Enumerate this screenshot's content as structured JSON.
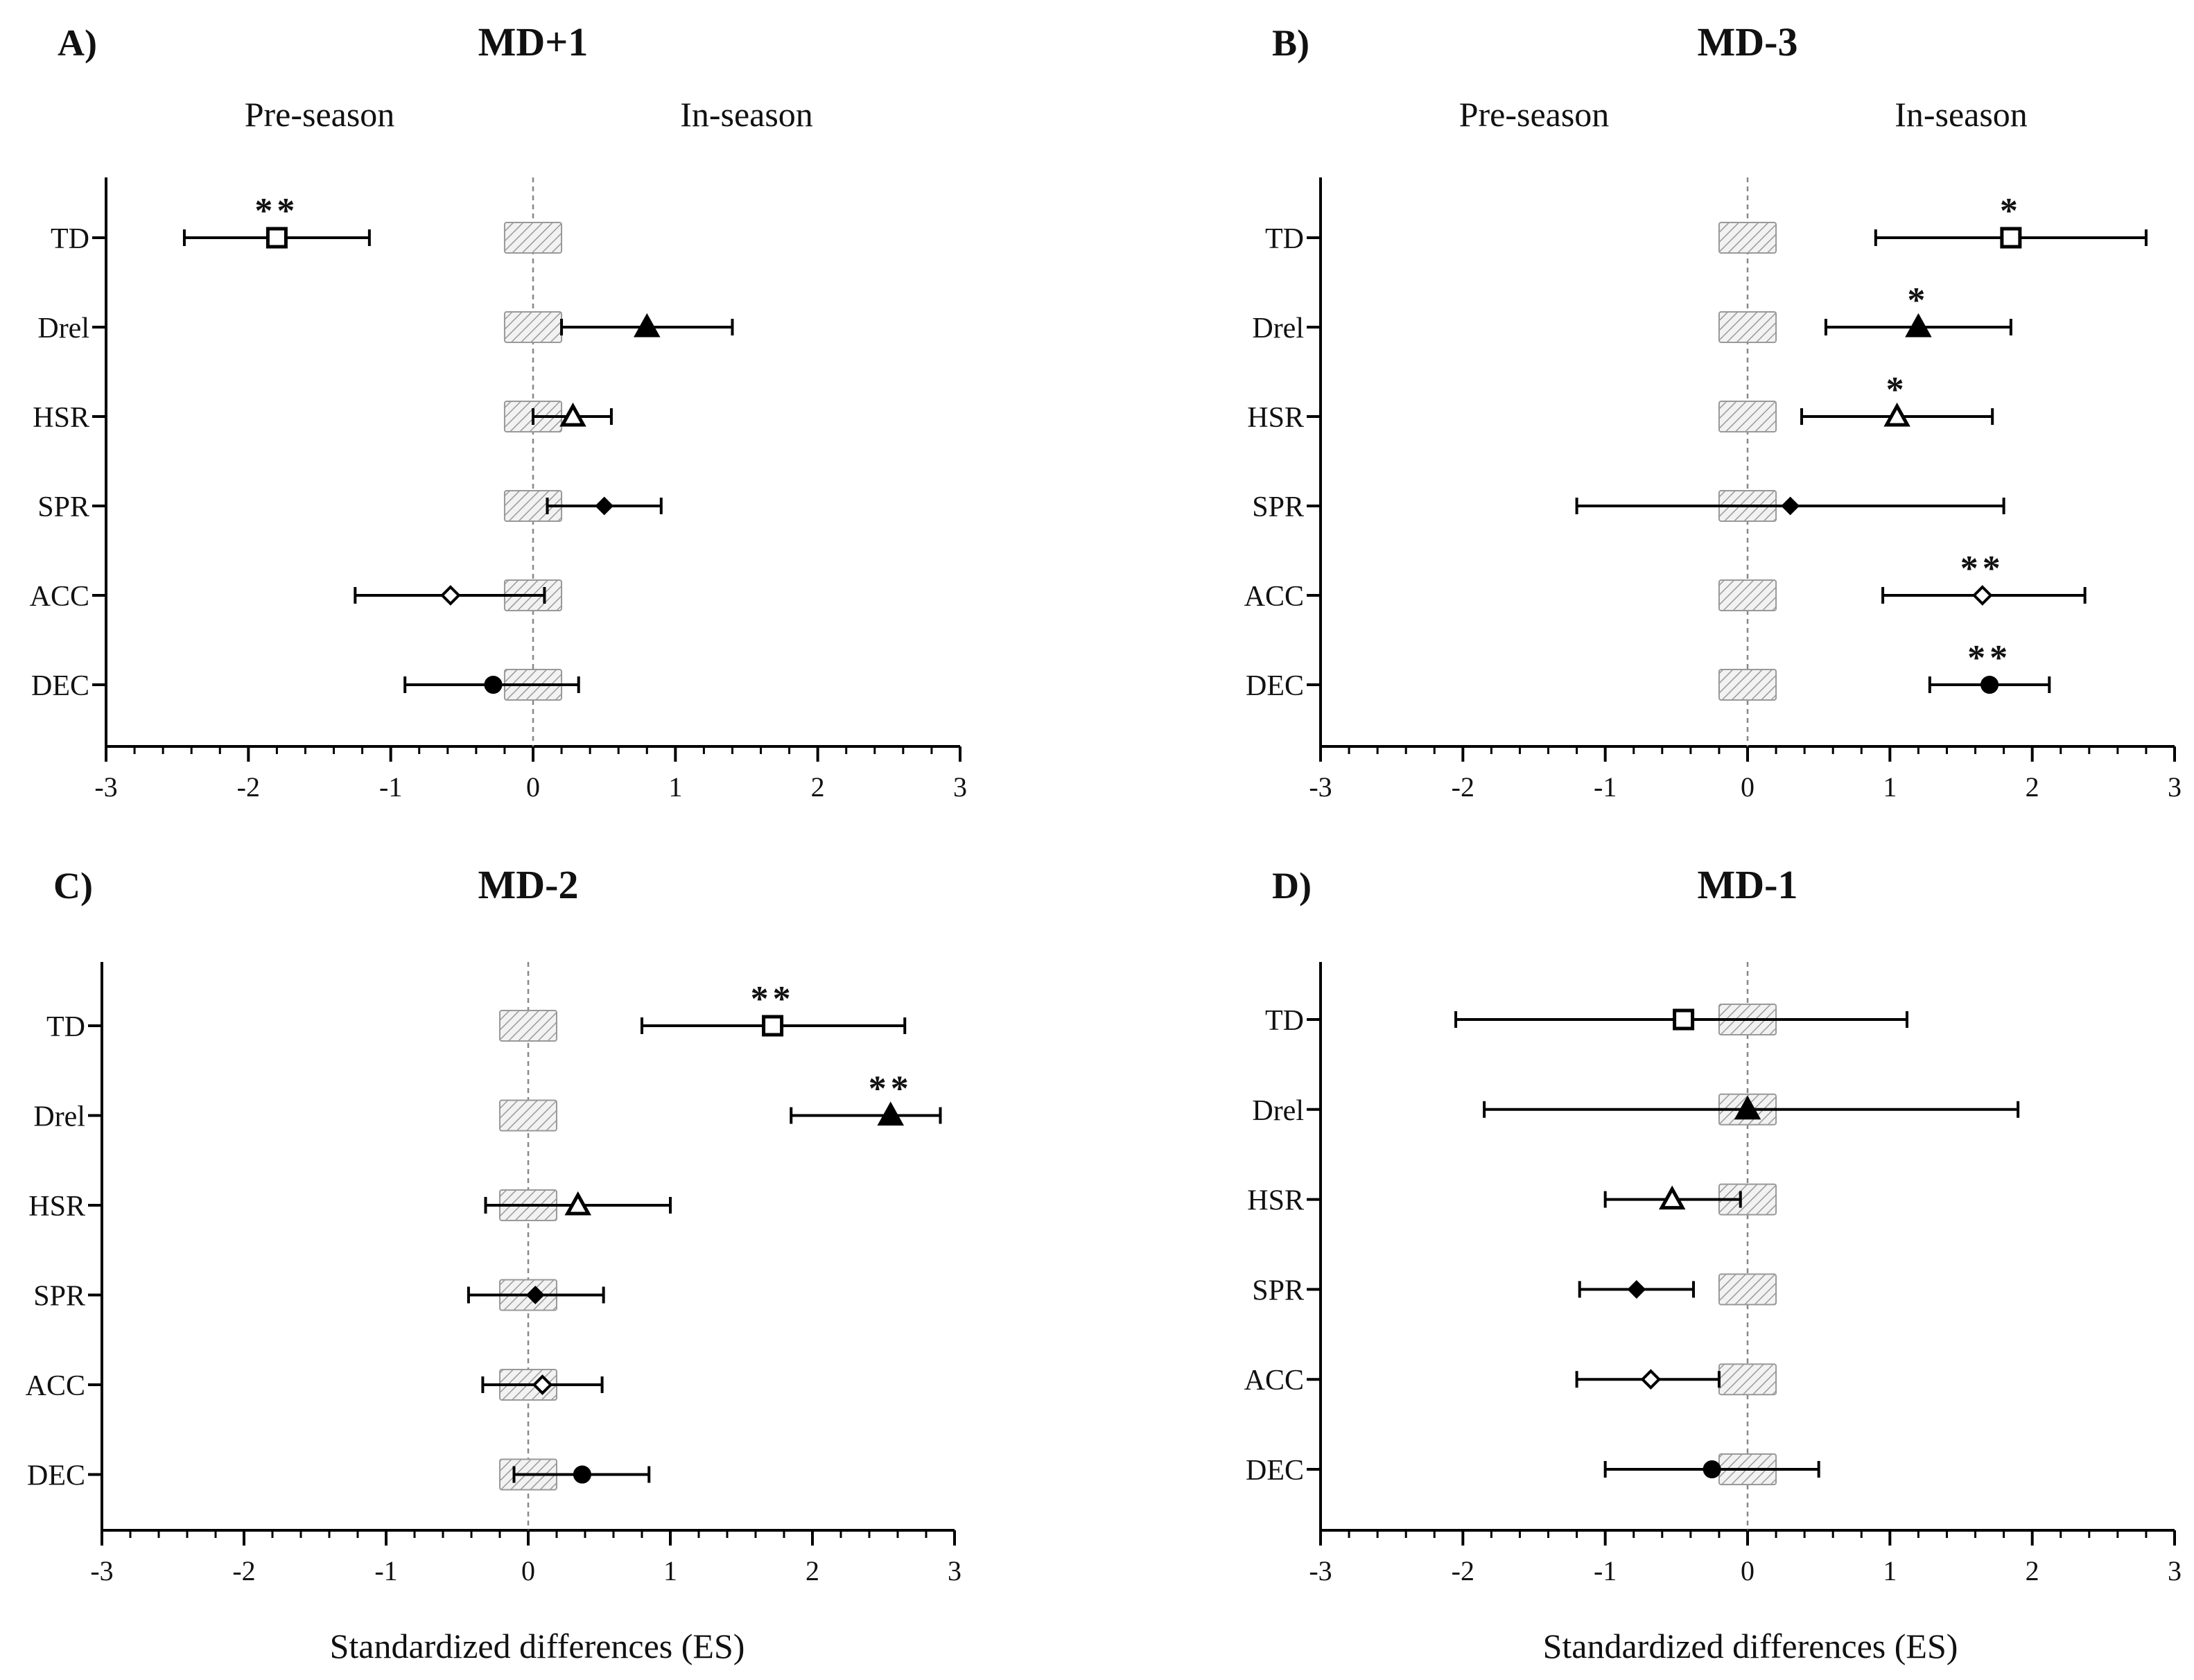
{
  "figure": {
    "x_axis_label": "Standardized  differences  (ES)"
  },
  "chart_data": [
    {
      "type": "forest",
      "panel": "A)",
      "title": "MD+1",
      "header_left": "Pre-season",
      "header_right": "In-season",
      "xlim": [
        -3,
        3
      ],
      "xticks": [
        -3,
        -2,
        -1,
        0,
        1,
        2,
        3
      ],
      "trivial_band": [
        -0.2,
        0.2
      ],
      "categories": [
        "TD",
        "Drel",
        "HSR",
        "SPR",
        "ACC",
        "DEC"
      ],
      "markers": [
        "square-open",
        "triangle-filled",
        "triangle-open",
        "diamond-filled",
        "diamond-open",
        "circle-filled"
      ],
      "es": [
        -1.8,
        0.8,
        0.28,
        0.5,
        -0.58,
        -0.28
      ],
      "ci_low": [
        -2.45,
        0.2,
        0.0,
        0.1,
        -1.25,
        -0.9
      ],
      "ci_high": [
        -1.15,
        1.4,
        0.55,
        0.9,
        0.08,
        0.32
      ],
      "sig": [
        "**",
        "",
        "",
        "",
        "",
        ""
      ]
    },
    {
      "type": "forest",
      "panel": "B)",
      "title": "MD-3",
      "header_left": "Pre-season",
      "header_right": "In-season",
      "xlim": [
        -3,
        3
      ],
      "xticks": [
        -3,
        -2,
        -1,
        0,
        1,
        2,
        3
      ],
      "trivial_band": [
        -0.2,
        0.2
      ],
      "categories": [
        "TD",
        "Drel",
        "HSR",
        "SPR",
        "ACC",
        "DEC"
      ],
      "markers": [
        "square-open",
        "triangle-filled",
        "triangle-open",
        "diamond-filled",
        "diamond-open",
        "circle-filled"
      ],
      "es": [
        1.85,
        1.2,
        1.05,
        0.3,
        1.65,
        1.7
      ],
      "ci_low": [
        0.9,
        0.55,
        0.38,
        -1.2,
        0.95,
        1.28
      ],
      "ci_high": [
        2.8,
        1.85,
        1.72,
        1.8,
        2.37,
        2.12
      ],
      "sig": [
        "*",
        "*",
        "*",
        "",
        "**",
        "**"
      ]
    },
    {
      "type": "forest",
      "panel": "C)",
      "title": "MD-2",
      "header_left": "",
      "header_right": "",
      "xlim": [
        -3,
        3
      ],
      "xticks": [
        -3,
        -2,
        -1,
        0,
        1,
        2,
        3
      ],
      "trivial_band": [
        -0.2,
        0.2
      ],
      "categories": [
        "TD",
        "Drel",
        "HSR",
        "SPR",
        "ACC",
        "DEC"
      ],
      "markers": [
        "square-open",
        "triangle-filled",
        "triangle-open",
        "diamond-filled",
        "diamond-open",
        "circle-filled"
      ],
      "es": [
        1.72,
        2.55,
        0.35,
        0.05,
        0.1,
        0.38
      ],
      "ci_low": [
        0.8,
        1.85,
        -0.3,
        -0.42,
        -0.32,
        -0.1
      ],
      "ci_high": [
        2.65,
        2.9,
        1.0,
        0.53,
        0.52,
        0.85
      ],
      "sig": [
        "**",
        "**",
        "",
        "",
        "",
        ""
      ]
    },
    {
      "type": "forest",
      "panel": "D)",
      "title": "MD-1",
      "header_left": "",
      "header_right": "",
      "xlim": [
        -3,
        3
      ],
      "xticks": [
        -3,
        -2,
        -1,
        0,
        1,
        2,
        3
      ],
      "trivial_band": [
        -0.2,
        0.2
      ],
      "categories": [
        "TD",
        "Drel",
        "HSR",
        "SPR",
        "ACC",
        "DEC"
      ],
      "markers": [
        "square-open",
        "triangle-filled",
        "triangle-open",
        "diamond-filled",
        "diamond-open",
        "circle-filled"
      ],
      "es": [
        -0.45,
        0.0,
        -0.53,
        -0.78,
        -0.68,
        -0.25
      ],
      "ci_low": [
        -2.05,
        -1.85,
        -1.0,
        -1.18,
        -1.2,
        -1.0
      ],
      "ci_high": [
        1.12,
        1.9,
        -0.05,
        -0.38,
        -0.2,
        0.5
      ],
      "sig": [
        "",
        "",
        "",
        "",
        "",
        ""
      ]
    }
  ]
}
